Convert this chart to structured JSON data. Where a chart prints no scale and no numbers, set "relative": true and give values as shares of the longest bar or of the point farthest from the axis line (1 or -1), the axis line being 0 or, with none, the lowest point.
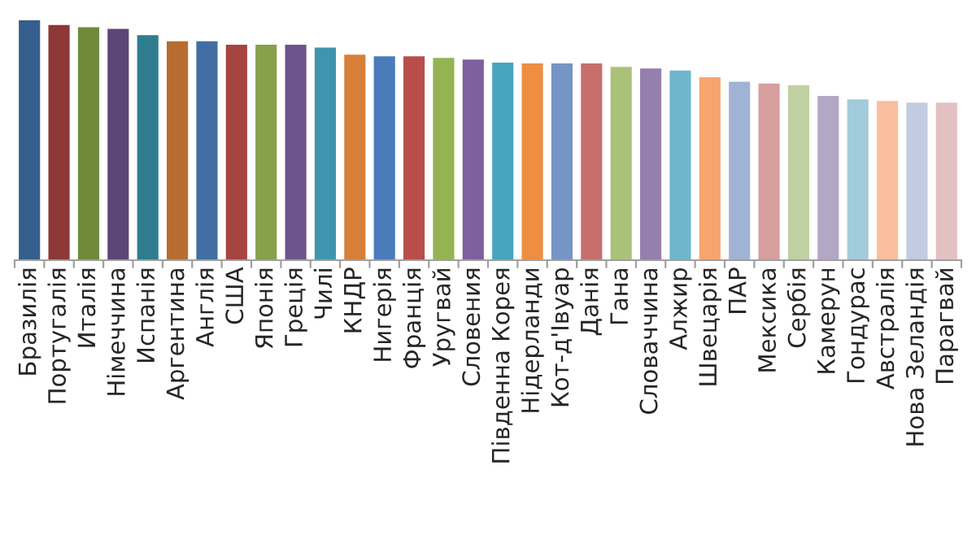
{
  "chart_data": {
    "type": "bar",
    "relative": true,
    "categories": [
      "Бразилія",
      "Португалія",
      "Италія",
      "Німеччина",
      "Испанія",
      "Аргентина",
      "Англія",
      "США",
      "Японія",
      "Греція",
      "Чилі",
      "КНДР",
      "Нигерія",
      "Франція",
      "Уругвай",
      "Словения",
      "Південна Корея",
      "Нідерланди",
      "Кот-д'Івуар",
      "Данія",
      "Гана",
      "Словаччина",
      "Алжир",
      "Швецарія",
      "ПАР",
      "Мексика",
      "Сербія",
      "Камерун",
      "Гондурас",
      "Австралія",
      "Нова Зеландія",
      "Парагвай"
    ],
    "values": [
      1,
      0.981,
      0.972,
      0.965,
      0.939,
      0.913,
      0.913,
      0.899,
      0.899,
      0.899,
      0.887,
      0.858,
      0.851,
      0.851,
      0.844,
      0.837,
      0.825,
      0.821,
      0.821,
      0.821,
      0.807,
      0.8,
      0.792,
      0.764,
      0.745,
      0.738,
      0.731,
      0.686,
      0.672,
      0.665,
      0.658,
      0.658
    ],
    "colors": [
      "#355e8c",
      "#8c3836",
      "#708a3c",
      "#5c4677",
      "#2f7d8e",
      "#b86d30",
      "#416fa4",
      "#a64442",
      "#86a04c",
      "#6e548c",
      "#3f95ad",
      "#d68039",
      "#4a7bbb",
      "#b84d4a",
      "#94b454",
      "#7d609d",
      "#48a5bf",
      "#ed8e42",
      "#7695c4",
      "#c66f6d",
      "#aac17a",
      "#957fac",
      "#6fb6cc",
      "#f6a56e",
      "#a1b3d4",
      "#d79f9e",
      "#c0d0a2",
      "#b4a7c4",
      "#a2cbdb",
      "#f8be9e",
      "#c1cce2",
      "#e3c1c2"
    ],
    "grid": false,
    "legend": false
  }
}
